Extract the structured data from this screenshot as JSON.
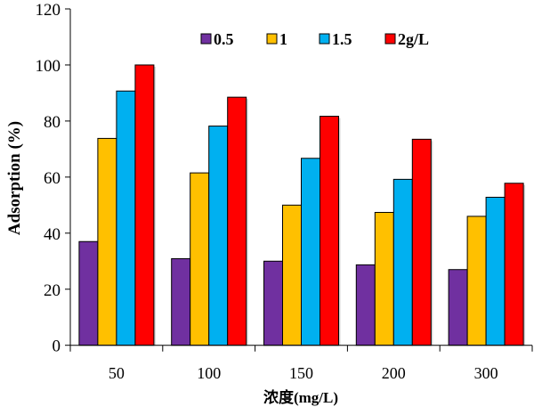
{
  "chart_data": {
    "type": "bar",
    "xlabel": "浓度(mg/L)",
    "ylabel": "Adsorption (%)",
    "categories": [
      "50",
      "100",
      "150",
      "200",
      "300"
    ],
    "ylim": [
      0,
      120
    ],
    "yticks": [
      0,
      20,
      40,
      60,
      80,
      100,
      120
    ],
    "grid": false,
    "legend_position": "top",
    "series": [
      {
        "name": "0.5",
        "color": "#7030A0",
        "values": [
          37.0,
          30.9,
          30.0,
          28.7,
          27.0
        ]
      },
      {
        "name": "1",
        "color": "#FFC000",
        "values": [
          73.8,
          61.5,
          50.0,
          47.4,
          46.0
        ]
      },
      {
        "name": "1.5",
        "color": "#00B0F0",
        "values": [
          90.7,
          78.2,
          66.7,
          59.2,
          52.8
        ]
      },
      {
        "name": "2g/L",
        "color": "#FF0000",
        "values": [
          100.0,
          88.5,
          81.7,
          73.5,
          57.8
        ]
      }
    ]
  }
}
